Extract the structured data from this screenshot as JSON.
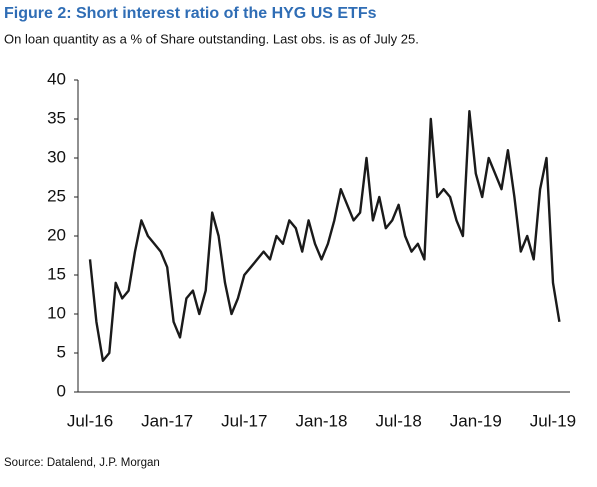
{
  "chart_data": {
    "type": "line",
    "title": "Figure 2: Short interest ratio of the HYG US ETFs",
    "subtitle": "On loan quantity as a % of Share outstanding. Last obs. is as of July 25.",
    "source": "Source: Datalend, J.P. Morgan",
    "categories": [
      "Jul-16",
      null,
      null,
      null,
      null,
      null,
      null,
      null,
      null,
      null,
      null,
      null,
      "Jan-17",
      null,
      null,
      null,
      null,
      null,
      null,
      null,
      null,
      null,
      null,
      null,
      "Jul-17",
      null,
      null,
      null,
      null,
      null,
      null,
      null,
      null,
      null,
      null,
      null,
      "Jan-18",
      null,
      null,
      null,
      null,
      null,
      null,
      null,
      null,
      null,
      null,
      null,
      "Jul-18",
      null,
      null,
      null,
      null,
      null,
      null,
      null,
      null,
      null,
      null,
      null,
      "Jan-19",
      null,
      null,
      null,
      null,
      null,
      null,
      null,
      null,
      null,
      null,
      null,
      "Jul-19",
      null
    ],
    "series": [
      {
        "name": "Short interest ratio",
        "color": "#1a1a1a",
        "values": [
          17,
          9,
          4,
          5,
          14,
          12,
          13,
          18,
          22,
          20,
          19,
          18,
          16,
          9,
          7,
          12,
          13,
          10,
          13,
          23,
          20,
          14,
          10,
          12,
          15,
          16,
          17,
          18,
          17,
          20,
          19,
          22,
          21,
          18,
          22,
          19,
          17,
          19,
          22,
          26,
          24,
          22,
          23,
          30,
          22,
          25,
          21,
          22,
          24,
          20,
          18,
          19,
          17,
          35,
          25,
          26,
          25,
          22,
          20,
          36,
          28,
          25,
          30,
          28,
          26,
          31,
          25,
          18,
          20,
          17,
          26,
          30,
          14,
          9
        ]
      }
    ],
    "ylim": [
      0,
      40
    ],
    "yticks": [
      0,
      5,
      10,
      15,
      20,
      25,
      30,
      35,
      40
    ]
  }
}
